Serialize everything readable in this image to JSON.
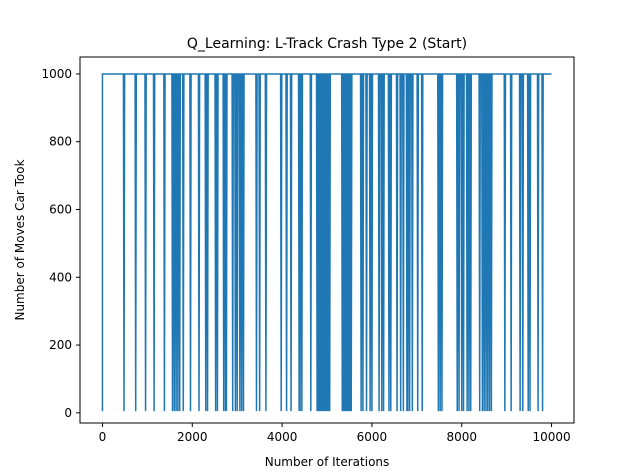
{
  "chart_data": {
    "type": "line",
    "title": "Q_Learning: L-Track Crash Type 2 (Start)",
    "xlabel": "Number of Iterations",
    "ylabel": "Number of Moves Car Took",
    "xlim": [
      -500,
      10500
    ],
    "ylim": [
      -30,
      1050
    ],
    "xticks": [
      0,
      2000,
      4000,
      6000,
      8000,
      10000
    ],
    "yticks": [
      0,
      200,
      400,
      600,
      800,
      1000
    ],
    "xtick_labels": [
      "0",
      "2000",
      "4000",
      "6000",
      "8000",
      "10000"
    ],
    "ytick_labels": [
      "0",
      "200",
      "400",
      "600",
      "800",
      "1000"
    ],
    "grid": false,
    "line_color": "#1f77b4",
    "series": [
      {
        "baseline": 1000,
        "x_start": 0,
        "x_end": 10000,
        "start_value": 5,
        "dip_value": 5,
        "dips_at": [
          480,
          740,
          960,
          1150,
          1380,
          1560,
          1600,
          1640,
          1680,
          1720,
          1800,
          1960,
          2150,
          2300,
          2340,
          2520,
          2560,
          2700,
          2740,
          2760,
          2900,
          2960,
          3000,
          3060,
          3100,
          3140,
          3430,
          3500,
          3640,
          3980,
          4100,
          4200,
          4380,
          4400,
          4440,
          4640,
          4780,
          4800,
          4820,
          4840,
          4860,
          4880,
          4900,
          4920,
          4940,
          4960,
          4980,
          5000,
          5020,
          5040,
          5060,
          5340,
          5360,
          5380,
          5400,
          5420,
          5440,
          5460,
          5480,
          5500,
          5520,
          5540,
          5760,
          5800,
          5880,
          5960,
          6000,
          6160,
          6220,
          6260,
          6380,
          6420,
          6560,
          6640,
          6700,
          6780,
          6800,
          6840,
          6900,
          7020,
          7120,
          7480,
          7520,
          7560,
          7900,
          7940,
          8000,
          8040,
          8120,
          8160,
          8200,
          8400,
          8460,
          8500,
          8540,
          8580,
          8620,
          8660,
          8960,
          9100,
          9300,
          9360,
          9480,
          9520,
          9700,
          9800
        ]
      }
    ]
  }
}
